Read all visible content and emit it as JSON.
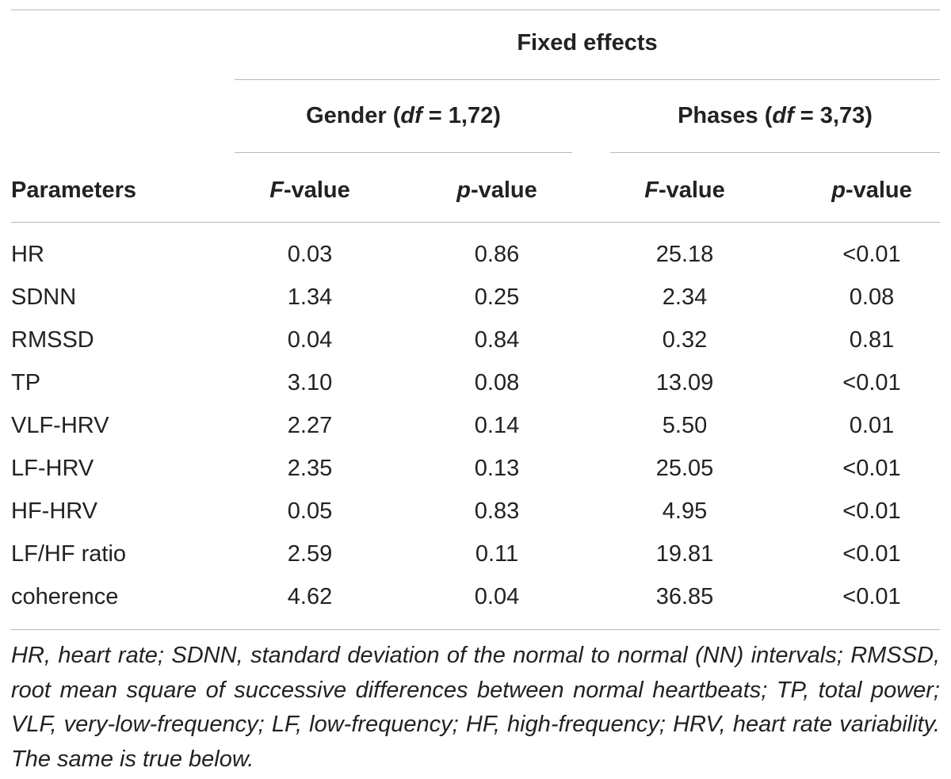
{
  "header": {
    "fixed_effects": "Fixed effects",
    "gender_group": {
      "prefix": "Gender (",
      "df": "df",
      "suffix": " = 1,72)"
    },
    "phases_group": {
      "prefix": "Phases (",
      "df": "df",
      "suffix": " = 3,73)"
    },
    "col_parameters": "Parameters",
    "f_value": {
      "var": "F",
      "rest": "-value"
    },
    "p_value": {
      "var": "p",
      "rest": "-value"
    }
  },
  "rows": [
    {
      "param": "HR",
      "gender_f": "0.03",
      "gender_p": "0.86",
      "phases_f": "25.18",
      "phases_p": "<0.01"
    },
    {
      "param": "SDNN",
      "gender_f": "1.34",
      "gender_p": "0.25",
      "phases_f": "2.34",
      "phases_p": "0.08"
    },
    {
      "param": "RMSSD",
      "gender_f": "0.04",
      "gender_p": "0.84",
      "phases_f": "0.32",
      "phases_p": "0.81"
    },
    {
      "param": "TP",
      "gender_f": "3.10",
      "gender_p": "0.08",
      "phases_f": "13.09",
      "phases_p": "<0.01"
    },
    {
      "param": "VLF-HRV",
      "gender_f": "2.27",
      "gender_p": "0.14",
      "phases_f": "5.50",
      "phases_p": "0.01"
    },
    {
      "param": "LF-HRV",
      "gender_f": "2.35",
      "gender_p": "0.13",
      "phases_f": "25.05",
      "phases_p": "<0.01"
    },
    {
      "param": "HF-HRV",
      "gender_f": "0.05",
      "gender_p": "0.83",
      "phases_f": "4.95",
      "phases_p": "<0.01"
    },
    {
      "param": "LF/HF ratio",
      "gender_f": "2.59",
      "gender_p": "0.11",
      "phases_f": "19.81",
      "phases_p": "<0.01"
    },
    {
      "param": "coherence",
      "gender_f": "4.62",
      "gender_p": "0.04",
      "phases_f": "36.85",
      "phases_p": "<0.01"
    }
  ],
  "footnote": "HR, heart rate; SDNN, standard deviation of the normal to normal (NN) intervals; RMSSD, root mean square of successive differences between normal heartbeats; TP, total power; VLF, very-low-frequency; LF, low-frequency; HF, high-frequency; HRV, heart rate variability. The same is true below."
}
